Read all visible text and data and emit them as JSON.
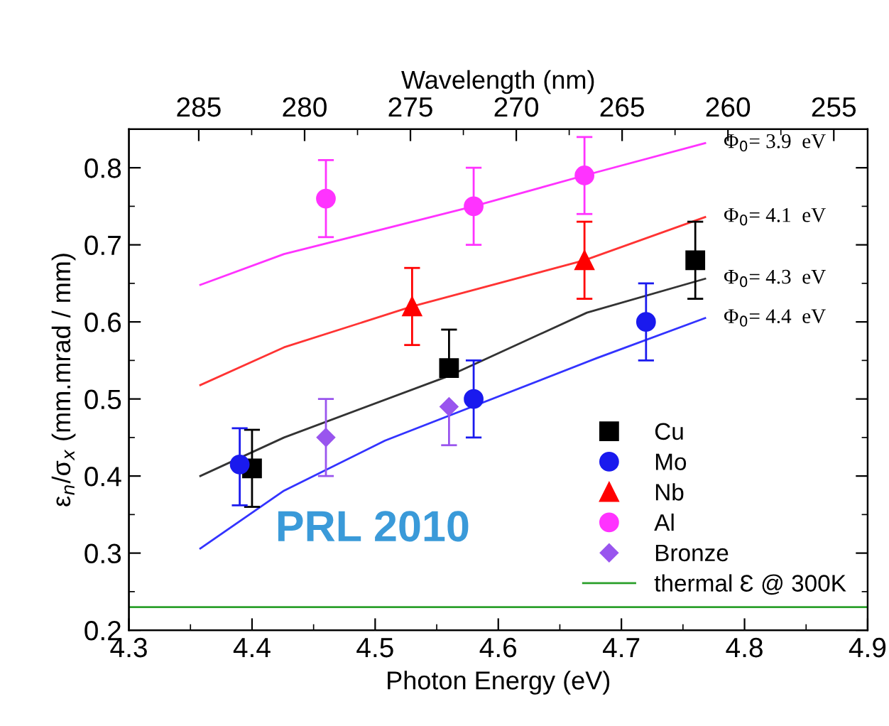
{
  "chart_data": {
    "type": "scatter",
    "xlabel": "Photon Energy (eV)",
    "ylabel": "ε$_{n}$/σ$_{x}$ (mm.mrad / mm)",
    "x2label": "Wavelength (nm)",
    "xlim": [
      4.3,
      4.9
    ],
    "xticks": [
      4.3,
      4.4,
      4.5,
      4.6,
      4.7,
      4.8,
      4.9
    ],
    "x2lim": [
      288.3,
      253.4
    ],
    "x2ticks": [
      285,
      280,
      275,
      270,
      265,
      260,
      255
    ],
    "ylim": [
      0.2,
      0.85
    ],
    "yticks": [
      0.2,
      0.3,
      0.4,
      0.5,
      0.6,
      0.7,
      0.8
    ],
    "grid": false,
    "legend": "bottom right",
    "series": [
      {
        "name": "Cu",
        "color": "#000000",
        "marker": "square",
        "x": [
          4.4,
          4.56,
          4.76
        ],
        "values": [
          0.41,
          0.54,
          0.68
        ],
        "errors": [
          [
            0.36,
            0.46
          ],
          [
            0.54,
            0.59
          ],
          [
            0.63,
            0.73
          ]
        ]
      },
      {
        "name": "Mo",
        "color": "#1a1aee",
        "marker": "circle",
        "x": [
          4.39,
          4.58,
          4.72
        ],
        "values": [
          0.415,
          0.5,
          0.6
        ],
        "errors": [
          [
            0.362,
            0.462
          ],
          [
            0.45,
            0.55
          ],
          [
            0.55,
            0.65
          ]
        ]
      },
      {
        "name": "Nb",
        "color": "#ff0000",
        "marker": "triangle",
        "x": [
          4.53,
          4.67
        ],
        "values": [
          0.62,
          0.68
        ],
        "errors": [
          [
            0.57,
            0.67
          ],
          [
            0.63,
            0.73
          ]
        ]
      },
      {
        "name": "Al",
        "color": "#ff33ff",
        "marker": "circle",
        "x": [
          4.46,
          4.58,
          4.67
        ],
        "values": [
          0.76,
          0.75,
          0.79
        ],
        "errors": [
          [
            0.71,
            0.81
          ],
          [
            0.7,
            0.8
          ],
          [
            0.74,
            0.84
          ]
        ]
      },
      {
        "name": "Bronze",
        "color": "#9955ee",
        "marker": "diamond",
        "x": [
          4.46,
          4.56
        ],
        "values": [
          0.45,
          0.49
        ],
        "errors": [
          [
            0.4,
            0.5
          ],
          [
            0.44,
            0.49
          ]
        ]
      },
      {
        "name": "Φ$_{0}$= 3.9  eV",
        "type": "line",
        "color": "#ff33ff",
        "x": [
          4.358,
          4.426,
          4.58,
          4.67,
          4.768
        ],
        "values": [
          0.648,
          0.688,
          0.75,
          0.79,
          0.832
        ]
      },
      {
        "name": "Φ$_{0}$= 4.1  eV",
        "type": "line",
        "color": "#ff3333",
        "x": [
          4.358,
          4.426,
          4.53,
          4.67,
          4.768
        ],
        "values": [
          0.518,
          0.567,
          0.62,
          0.68,
          0.736
        ]
      },
      {
        "name": "Φ$_{0}$= 4.3  eV",
        "type": "line",
        "color": "#333333",
        "x": [
          4.358,
          4.426,
          4.56,
          4.672,
          4.768
        ],
        "values": [
          0.4,
          0.45,
          0.53,
          0.612,
          0.656
        ]
      },
      {
        "name": "Φ$_{0}$= 4.4  eV",
        "type": "line",
        "color": "#3333ff",
        "x": [
          4.358,
          4.426,
          4.508,
          4.68,
          4.768
        ],
        "values": [
          0.306,
          0.381,
          0.446,
          0.553,
          0.605
        ]
      }
    ],
    "ref_lines": [
      {
        "axis": "y",
        "value": 0.23,
        "label": "thermal Ɛ @ 300K",
        "color": "#2ca02c"
      }
    ],
    "annotations": [
      "PRL 2010"
    ]
  }
}
